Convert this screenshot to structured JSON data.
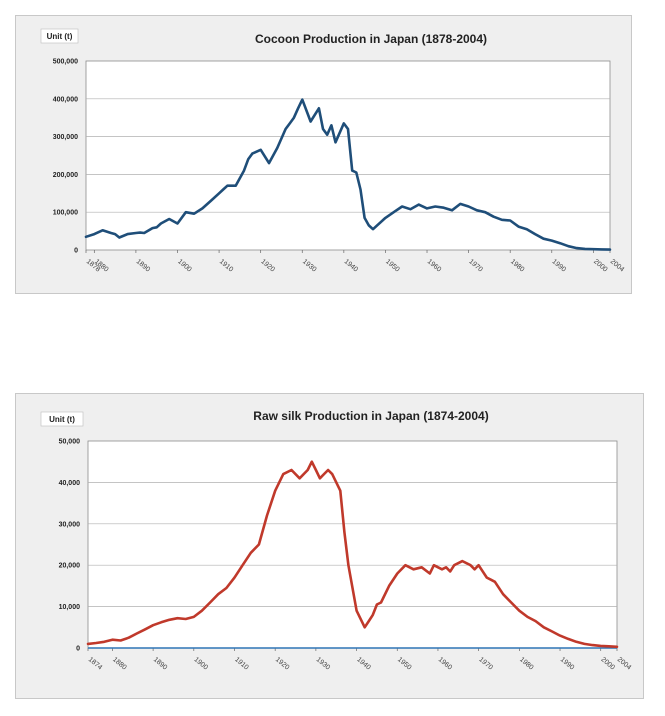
{
  "chart_data": [
    {
      "type": "line",
      "title": "Cocoon Production in Japan (1878-2004)",
      "unit_label": "Unit (t)",
      "ylim": [
        0,
        500000
      ],
      "y_tick_labels": [
        "0",
        "100,000",
        "200,000",
        "300,000",
        "400,000",
        "500,000"
      ],
      "y_tick_values": [
        0,
        100000,
        200000,
        300000,
        400000,
        500000
      ],
      "xlim": [
        1878,
        2004
      ],
      "x_ticks": [
        1878,
        1880,
        1890,
        1900,
        1910,
        1920,
        1930,
        1940,
        1950,
        1960,
        1970,
        1980,
        1990,
        2000,
        2004
      ],
      "grid": true,
      "line_color": "#1f4e79",
      "series": [
        {
          "x": [
            1878,
            1880,
            1882,
            1884,
            1885,
            1886,
            1888,
            1890,
            1891,
            1892,
            1894,
            1895,
            1896,
            1898,
            1900,
            1902,
            1904,
            1906,
            1908,
            1910,
            1911,
            1912,
            1914,
            1916,
            1917,
            1918,
            1920,
            1922,
            1924,
            1926,
            1927,
            1928,
            1929,
            1930,
            1932,
            1934,
            1935,
            1936,
            1937,
            1938,
            1940,
            1941,
            1942,
            1943,
            1944,
            1945,
            1946,
            1947,
            1948,
            1950,
            1952,
            1954,
            1956,
            1958,
            1960,
            1962,
            1964,
            1966,
            1968,
            1970,
            1972,
            1974,
            1976,
            1978,
            1980,
            1982,
            1984,
            1986,
            1988,
            1990,
            1992,
            1994,
            1996,
            1998,
            2000,
            2002,
            2004
          ],
          "y": [
            35000,
            42000,
            52000,
            45000,
            42000,
            33000,
            42000,
            45000,
            46000,
            45000,
            58000,
            60000,
            70000,
            82000,
            70000,
            100000,
            96000,
            110000,
            130000,
            150000,
            160000,
            170000,
            170000,
            210000,
            240000,
            255000,
            265000,
            230000,
            270000,
            320000,
            335000,
            350000,
            375000,
            398000,
            340000,
            375000,
            320000,
            305000,
            330000,
            285000,
            335000,
            320000,
            210000,
            205000,
            160000,
            85000,
            65000,
            55000,
            65000,
            85000,
            100000,
            115000,
            108000,
            120000,
            110000,
            115000,
            112000,
            105000,
            122000,
            115000,
            105000,
            100000,
            88000,
            80000,
            78000,
            62000,
            55000,
            42000,
            30000,
            25000,
            18000,
            10000,
            5000,
            3000,
            2000,
            1500,
            1000
          ]
        }
      ]
    },
    {
      "type": "line",
      "title": "Raw silk Production in Japan (1874-2004)",
      "unit_label": "Unit  (t)",
      "ylim": [
        0,
        50000
      ],
      "y_tick_labels": [
        "0",
        "10,000",
        "20,000",
        "30,000",
        "40,000",
        "50,000"
      ],
      "y_tick_values": [
        0,
        10000,
        20000,
        30000,
        40000,
        50000
      ],
      "xlim": [
        1874,
        2004
      ],
      "x_ticks": [
        1874,
        1880,
        1890,
        1900,
        1910,
        1920,
        1930,
        1940,
        1950,
        1960,
        1970,
        1980,
        1990,
        2000,
        2004
      ],
      "grid": true,
      "line_color": "#c0392b",
      "baseline_color": "#2e75b6",
      "series": [
        {
          "x": [
            1874,
            1876,
            1878,
            1880,
            1882,
            1884,
            1886,
            1888,
            1890,
            1892,
            1894,
            1896,
            1898,
            1900,
            1902,
            1904,
            1906,
            1908,
            1910,
            1912,
            1914,
            1916,
            1918,
            1920,
            1922,
            1924,
            1926,
            1928,
            1929,
            1930,
            1931,
            1932,
            1933,
            1934,
            1936,
            1937,
            1938,
            1940,
            1942,
            1943,
            1944,
            1945,
            1946,
            1948,
            1950,
            1952,
            1954,
            1956,
            1958,
            1959,
            1960,
            1961,
            1962,
            1963,
            1964,
            1966,
            1968,
            1969,
            1970,
            1972,
            1973,
            1974,
            1976,
            1978,
            1980,
            1982,
            1984,
            1986,
            1988,
            1990,
            1992,
            1994,
            1996,
            1998,
            2000,
            2002,
            2004
          ],
          "y": [
            1000,
            1200,
            1500,
            2000,
            1800,
            2500,
            3500,
            4500,
            5500,
            6200,
            6800,
            7200,
            7000,
            7500,
            9000,
            11000,
            13000,
            14500,
            17000,
            20000,
            23000,
            25000,
            32000,
            38000,
            42000,
            43000,
            41000,
            43000,
            45000,
            43000,
            41000,
            42000,
            43000,
            42000,
            38000,
            28000,
            20000,
            9000,
            5000,
            6500,
            8000,
            10500,
            11000,
            15000,
            18000,
            20000,
            19000,
            19500,
            18000,
            20000,
            19500,
            19000,
            19500,
            18500,
            20000,
            21000,
            20000,
            19000,
            20000,
            17000,
            16500,
            16000,
            13000,
            11000,
            9000,
            7500,
            6500,
            5000,
            4000,
            3000,
            2200,
            1500,
            1000,
            700,
            500,
            400,
            300
          ]
        }
      ]
    }
  ]
}
